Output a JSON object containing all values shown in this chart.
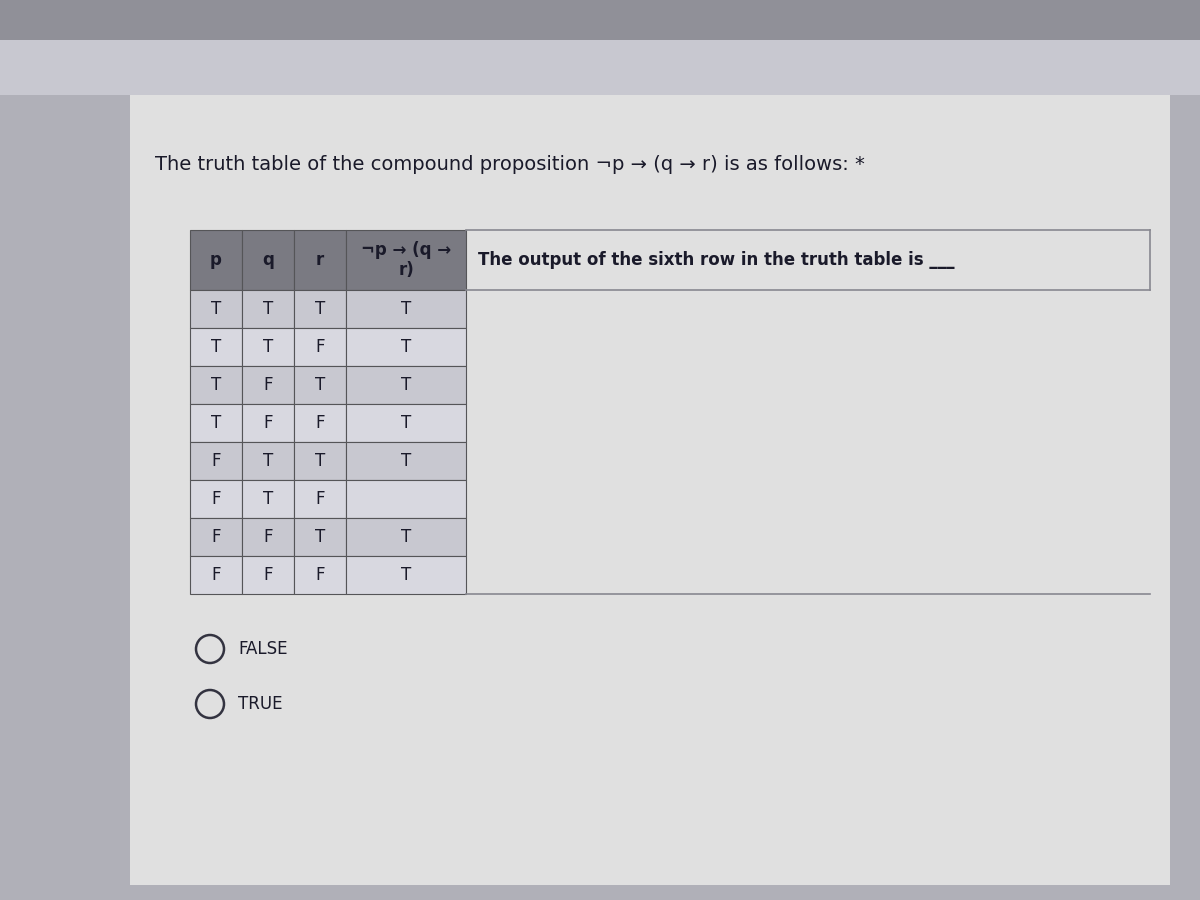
{
  "title": "The truth table of the compound proposition ¬p → (q → r) is as follows: *",
  "title_fontsize": 14,
  "col_headers": [
    "p",
    "q",
    "r",
    "¬p → (q →\nr)"
  ],
  "rows": [
    [
      "T",
      "T",
      "T",
      "T"
    ],
    [
      "T",
      "T",
      "F",
      "T"
    ],
    [
      "T",
      "F",
      "T",
      "T"
    ],
    [
      "T",
      "F",
      "F",
      "T"
    ],
    [
      "F",
      "T",
      "T",
      "T"
    ],
    [
      "F",
      "T",
      "F",
      ""
    ],
    [
      "F",
      "F",
      "T",
      "T"
    ],
    [
      "F",
      "F",
      "F",
      "T"
    ]
  ],
  "side_text": "The output of the sixth row in the truth table is ___",
  "side_text_fontsize": 12,
  "option1": "FALSE",
  "option2": "TRUE",
  "option_fontsize": 12,
  "outer_bg": "#b0b0b8",
  "top_bar_color": "#a0a0a8",
  "card_color": "#e0e0e0",
  "table_header_bg": "#7a7a82",
  "table_row_odd": "#c8c8d0",
  "table_row_even": "#d8d8e0",
  "table_border_color": "#555558",
  "cell_text_color": "#1a1a2a",
  "header_text_color": "#1a1a2a",
  "side_box_border": "#888890",
  "radio_color": "#333340"
}
